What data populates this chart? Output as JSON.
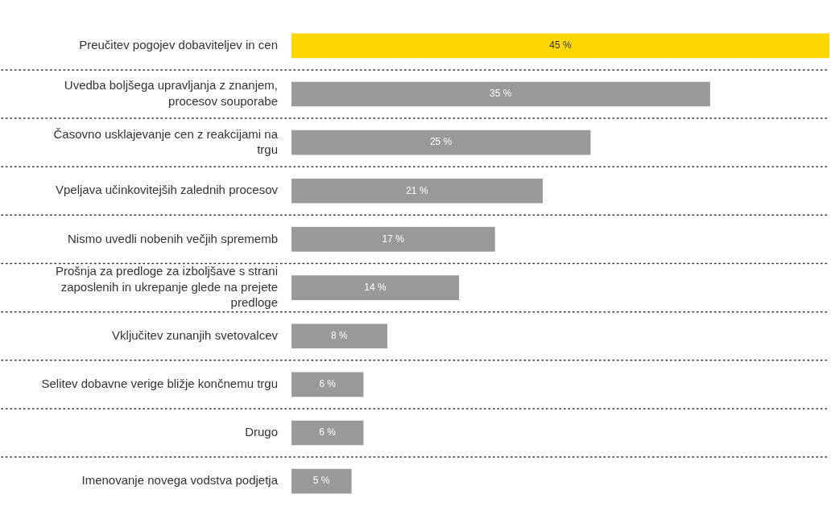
{
  "chart_data": {
    "type": "bar",
    "orientation": "horizontal",
    "categories": [
      "Preučitev pogojev dobaviteljev in cen",
      "Uvedba boljšega upravljanja z znanjem, procesov souporabe",
      "Časovno usklajevanje cen z reakcijami na trgu",
      "Vpeljava učinkovitejših zalednih procesov",
      "Nismo uvedli nobenih večjih sprememb",
      "Prošnja za predloge za izboljšave s strani zaposlenih in ukrepanje glede na prejete predloge",
      "Vključitev zunanjih svetovalcev",
      "Selitev dobavne verige bližje končnemu trgu",
      "Drugo",
      "Imenovanje novega vodstva podjetja"
    ],
    "values": [
      45,
      35,
      25,
      21,
      17,
      14,
      8,
      6,
      6,
      5
    ],
    "colors": [
      "#ffd700",
      "#999999",
      "#999999",
      "#999999",
      "#999999",
      "#999999",
      "#999999",
      "#999999",
      "#999999",
      "#999999"
    ],
    "value_labels": [
      "45 %",
      "35 %",
      "25 %",
      "21 %",
      "17 %",
      "14 %",
      "8 %",
      "6 %",
      "6 %",
      "5 %"
    ],
    "xlim": [
      0,
      45
    ],
    "grid": "y",
    "tick_labels": "y",
    "legend": false
  }
}
